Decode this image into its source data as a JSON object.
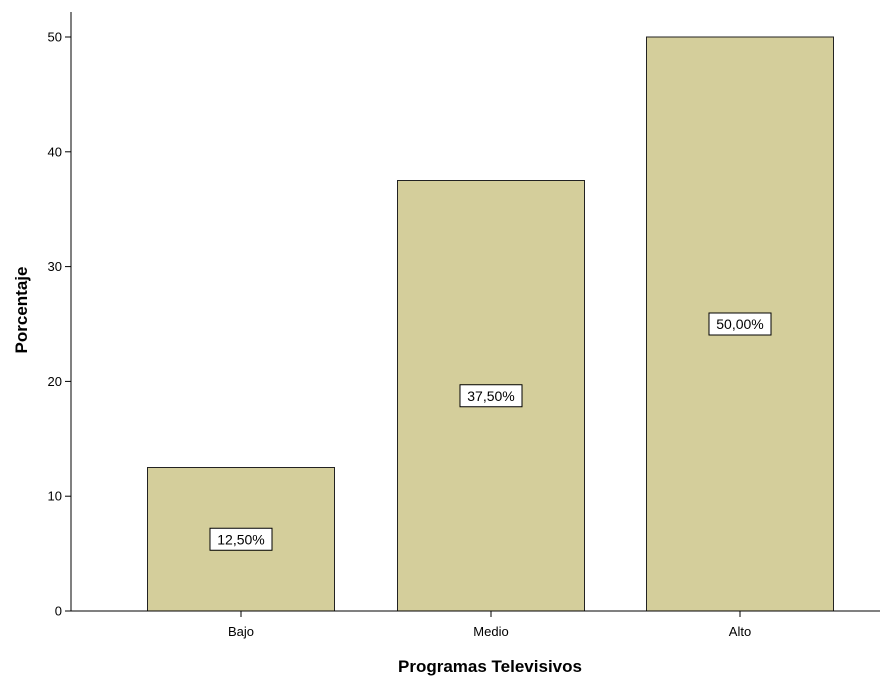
{
  "chart_data": {
    "type": "bar",
    "categories": [
      "Bajo",
      "Medio",
      "Alto"
    ],
    "values": [
      12.5,
      37.5,
      50.0
    ],
    "data_labels": [
      "12,50%",
      "37,50%",
      "50,00%"
    ],
    "title": "",
    "xlabel": "Programas Televisivos",
    "ylabel": "Porcentaje",
    "ylim": [
      0,
      50
    ],
    "yticks": [
      0,
      10,
      20,
      30,
      40,
      50
    ],
    "grid": false,
    "legend": "none",
    "colors": {
      "bar_fill": "#d4ce9b",
      "bar_stroke": "#222222",
      "axis": "#000000",
      "label_box_fill": "#ffffff",
      "label_box_stroke": "#000000"
    }
  }
}
